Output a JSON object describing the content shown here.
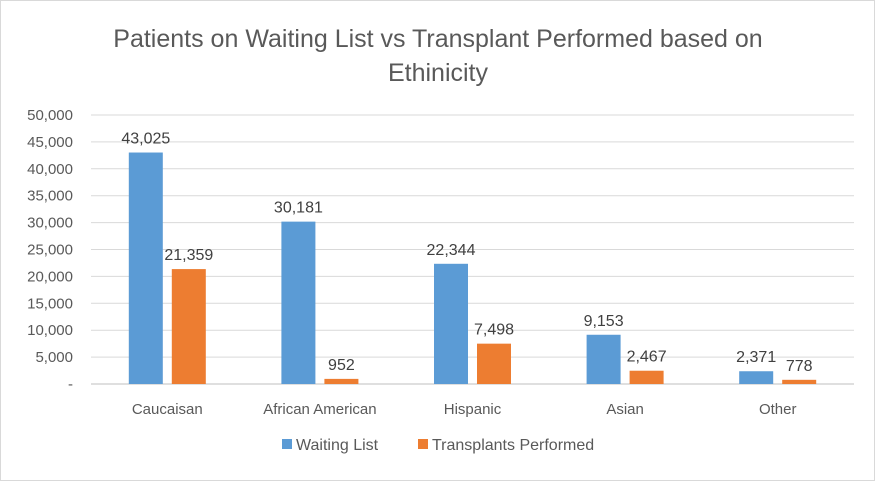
{
  "chart_data": {
    "type": "bar",
    "title_lines": [
      "Patients on Waiting List vs Transplant Performed  based on",
      "Ethinicity"
    ],
    "categories": [
      "Caucaisan",
      "African American",
      "Hispanic",
      "Asian",
      "Other"
    ],
    "series": [
      {
        "name": "Waiting List",
        "color": "#5b9bd5",
        "values": [
          43025,
          30181,
          22344,
          9153,
          2371
        ],
        "labels": [
          "43,025",
          "30,181",
          "22,344",
          "9,153",
          "2,371"
        ]
      },
      {
        "name": "Transplants Performed",
        "color": "#ed7d31",
        "values": [
          21359,
          952,
          7498,
          2467,
          778
        ],
        "labels": [
          "21,359",
          "952",
          "7,498",
          "2,467",
          "778"
        ]
      }
    ],
    "y_ticks": [
      0,
      5000,
      10000,
      15000,
      20000,
      25000,
      30000,
      35000,
      40000,
      45000,
      50000
    ],
    "y_tick_labels": [
      "-",
      "5,000",
      "10,000",
      "15,000",
      "20,000",
      "25,000",
      "30,000",
      "35,000",
      "40,000",
      "45,000",
      "50,000"
    ],
    "ylim": [
      0,
      50000
    ],
    "grid": true,
    "legend_position": "bottom",
    "xlabel": "",
    "ylabel": ""
  }
}
